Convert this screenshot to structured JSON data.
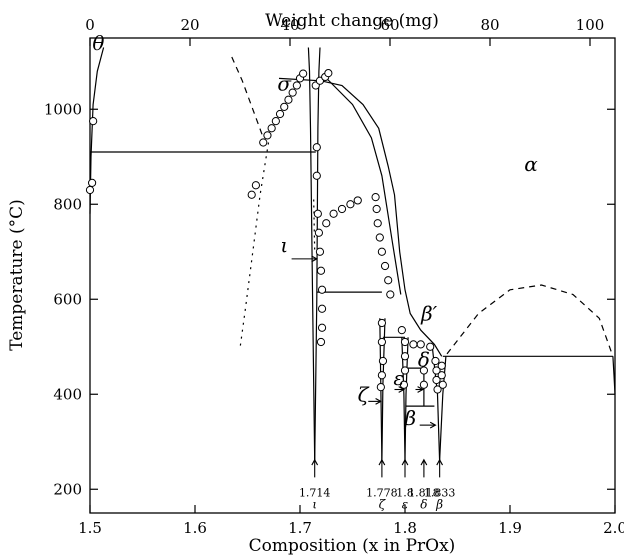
{
  "chart_data": {
    "type": "scatter",
    "xlabel": "Composition (x in PrOx)",
    "ylabel": "Temperature (°C)",
    "x2label": "Weight change (mg)",
    "xlim": [
      1.5,
      2.0
    ],
    "ylim": [
      150,
      1150
    ],
    "x2lim": [
      0,
      105
    ],
    "xticks": [
      1.5,
      1.6,
      1.7,
      1.8,
      1.9,
      2.0
    ],
    "yticks": [
      200,
      400,
      600,
      800,
      1000
    ],
    "x2ticks": [
      0,
      20,
      40,
      60,
      80,
      100
    ],
    "grid": false,
    "phase_labels": [
      {
        "text": "θ",
        "x": 1.508,
        "y": 1125
      },
      {
        "text": "σ",
        "x": 1.685,
        "y": 1040
      },
      {
        "text": "α",
        "x": 1.92,
        "y": 870
      },
      {
        "text": "ι",
        "x": 1.685,
        "y": 700
      },
      {
        "text": "β′",
        "x": 1.823,
        "y": 555
      },
      {
        "text": "ζ",
        "x": 1.76,
        "y": 385
      },
      {
        "text": "ε",
        "x": 1.794,
        "y": 420
      },
      {
        "text": "δ",
        "x": 1.818,
        "y": 458
      },
      {
        "text": "β",
        "x": 1.805,
        "y": 335
      }
    ],
    "compositions": [
      {
        "value": "1.714",
        "phase": "ι",
        "x": 1.714
      },
      {
        "value": "1.778",
        "phase": "ζ",
        "x": 1.778
      },
      {
        "value": "1.8",
        "phase": "ε",
        "x": 1.8
      },
      {
        "value": "1.818",
        "phase": "δ",
        "x": 1.818
      },
      {
        "value": "1.833",
        "phase": "β",
        "x": 1.833
      }
    ],
    "series": [
      {
        "values": [
          {
            "x": 1.5,
            "y": 830
          },
          {
            "x": 1.502,
            "y": 845
          },
          {
            "x": 1.503,
            "y": 975
          },
          {
            "x": 1.654,
            "y": 820
          },
          {
            "x": 1.658,
            "y": 840
          },
          {
            "x": 1.665,
            "y": 930
          },
          {
            "x": 1.669,
            "y": 945
          },
          {
            "x": 1.673,
            "y": 960
          },
          {
            "x": 1.677,
            "y": 975
          },
          {
            "x": 1.681,
            "y": 990
          },
          {
            "x": 1.685,
            "y": 1005
          },
          {
            "x": 1.689,
            "y": 1020
          },
          {
            "x": 1.693,
            "y": 1035
          },
          {
            "x": 1.697,
            "y": 1050
          },
          {
            "x": 1.7,
            "y": 1065
          },
          {
            "x": 1.703,
            "y": 1075
          },
          {
            "x": 1.715,
            "y": 1050
          },
          {
            "x": 1.719,
            "y": 1060
          },
          {
            "x": 1.724,
            "y": 1068
          },
          {
            "x": 1.727,
            "y": 1076
          },
          {
            "x": 1.716,
            "y": 920
          },
          {
            "x": 1.716,
            "y": 860
          },
          {
            "x": 1.717,
            "y": 780
          },
          {
            "x": 1.718,
            "y": 740
          },
          {
            "x": 1.719,
            "y": 700
          },
          {
            "x": 1.72,
            "y": 660
          },
          {
            "x": 1.721,
            "y": 620
          },
          {
            "x": 1.721,
            "y": 580
          },
          {
            "x": 1.721,
            "y": 540
          },
          {
            "x": 1.72,
            "y": 510
          },
          {
            "x": 1.725,
            "y": 760
          },
          {
            "x": 1.732,
            "y": 780
          },
          {
            "x": 1.74,
            "y": 790
          },
          {
            "x": 1.748,
            "y": 800
          },
          {
            "x": 1.755,
            "y": 808
          },
          {
            "x": 1.772,
            "y": 815
          },
          {
            "x": 1.773,
            "y": 790
          },
          {
            "x": 1.774,
            "y": 760
          },
          {
            "x": 1.776,
            "y": 730
          },
          {
            "x": 1.778,
            "y": 700
          },
          {
            "x": 1.781,
            "y": 670
          },
          {
            "x": 1.784,
            "y": 640
          },
          {
            "x": 1.786,
            "y": 610
          },
          {
            "x": 1.778,
            "y": 550
          },
          {
            "x": 1.778,
            "y": 510
          },
          {
            "x": 1.779,
            "y": 470
          },
          {
            "x": 1.778,
            "y": 440
          },
          {
            "x": 1.777,
            "y": 415
          },
          {
            "x": 1.797,
            "y": 535
          },
          {
            "x": 1.8,
            "y": 510
          },
          {
            "x": 1.8,
            "y": 480
          },
          {
            "x": 1.8,
            "y": 450
          },
          {
            "x": 1.799,
            "y": 420
          },
          {
            "x": 1.808,
            "y": 505
          },
          {
            "x": 1.815,
            "y": 505
          },
          {
            "x": 1.824,
            "y": 500
          },
          {
            "x": 1.818,
            "y": 450
          },
          {
            "x": 1.818,
            "y": 420
          },
          {
            "x": 1.829,
            "y": 470
          },
          {
            "x": 1.83,
            "y": 450
          },
          {
            "x": 1.83,
            "y": 430
          },
          {
            "x": 1.831,
            "y": 410
          },
          {
            "x": 1.835,
            "y": 460
          },
          {
            "x": 1.835,
            "y": 440
          },
          {
            "x": 1.836,
            "y": 420
          }
        ]
      }
    ]
  }
}
